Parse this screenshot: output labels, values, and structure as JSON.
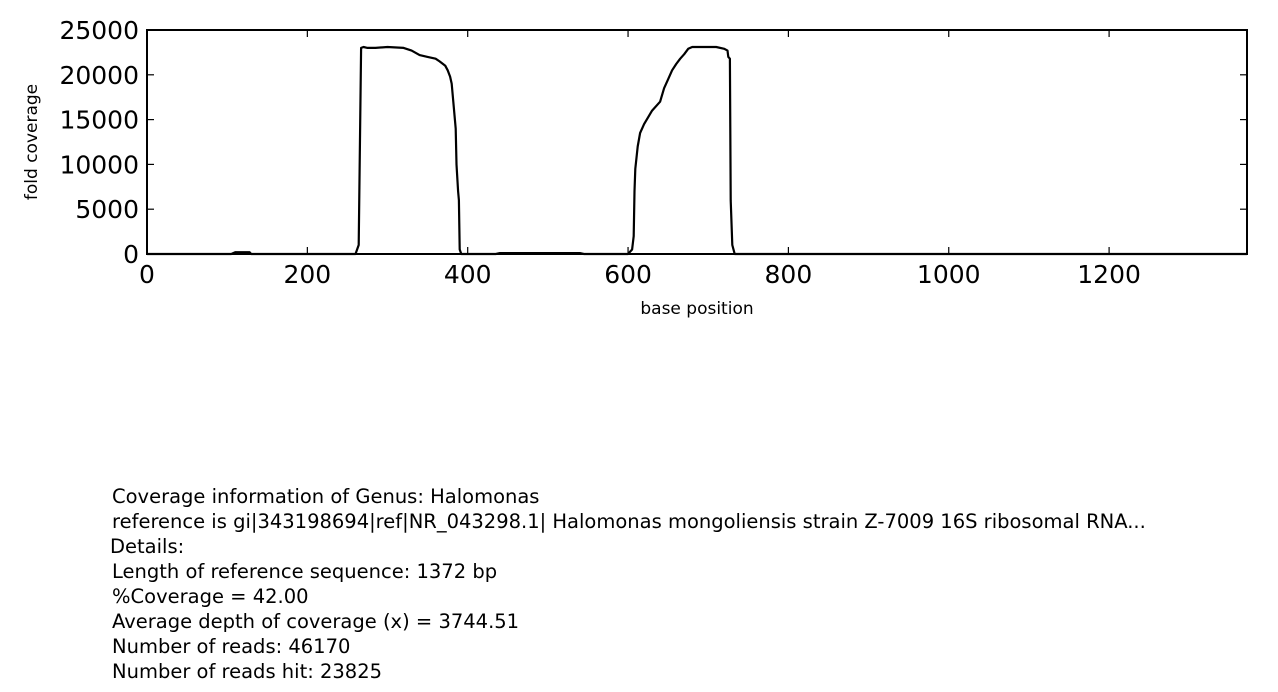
{
  "chart_data": {
    "type": "line",
    "title": "",
    "xlabel": "base position",
    "ylabel": "fold coverage",
    "xlim": [
      0,
      1372
    ],
    "ylim": [
      0,
      25000
    ],
    "x_ticks": [
      "0",
      "200",
      "400",
      "600",
      "800",
      "1000",
      "1200"
    ],
    "y_ticks": [
      "0",
      "5000",
      "10000",
      "15000",
      "20000",
      "25000"
    ],
    "grid": false,
    "legend": "none",
    "line_color": "#000000",
    "x": [
      0,
      105,
      110,
      128,
      130,
      260,
      264,
      267,
      270,
      275,
      285,
      300,
      320,
      330,
      340,
      350,
      360,
      365,
      372,
      375,
      378,
      380,
      382,
      384,
      385,
      386,
      388,
      389,
      390,
      392,
      435,
      440,
      540,
      545,
      600,
      605,
      607,
      608,
      609,
      612,
      615,
      620,
      630,
      640,
      645,
      650,
      655,
      660,
      665,
      670,
      675,
      680,
      700,
      710,
      720,
      724,
      725,
      727,
      728,
      730,
      733,
      740,
      1372
    ],
    "y": [
      0,
      0,
      200,
      200,
      0,
      0,
      1000,
      23000,
      23100,
      23000,
      23000,
      23100,
      23000,
      22700,
      22200,
      22000,
      21800,
      21500,
      21000,
      20500,
      19800,
      19000,
      17000,
      15000,
      14000,
      10000,
      7000,
      6000,
      500,
      0,
      0,
      100,
      100,
      0,
      0,
      500,
      2000,
      7000,
      9500,
      12000,
      13500,
      14500,
      16000,
      17000,
      18500,
      19500,
      20500,
      21200,
      21800,
      22300,
      22900,
      23100,
      23100,
      23100,
      22900,
      22700,
      22000,
      21800,
      6000,
      1000,
      0,
      0,
      0
    ]
  },
  "info": {
    "genus_line": "Coverage information of Genus: Halomonas",
    "reference_line": "reference is gi|343198694|ref|NR_043298.1| Halomonas mongoliensis strain Z-7009 16S ribosomal RNA...",
    "details_label": "Details:",
    "length_line": "Length of reference sequence: 1372 bp",
    "coverage_line": "%Coverage = 42.00",
    "depth_line": "Average depth of coverage (x) = 3744.51",
    "reads_line": "Number of reads: 46170",
    "reads_hit_line": "Number of reads hit: 23825"
  }
}
